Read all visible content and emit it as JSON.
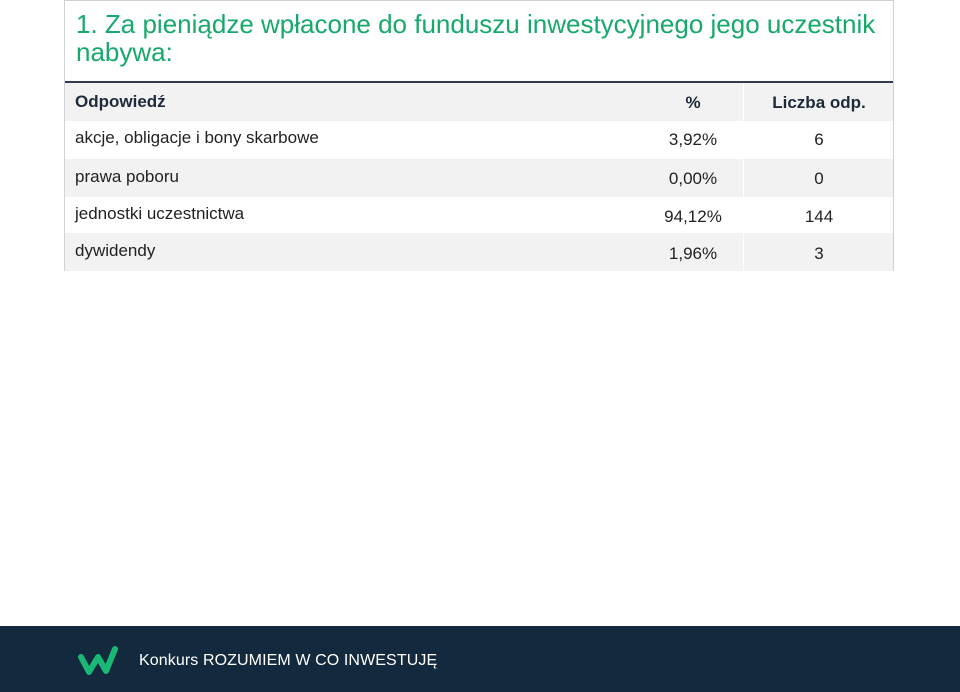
{
  "title": "1. Za pieniądze wpłacone do funduszu inwestycyjnego jego uczestnik nabywa:",
  "table": {
    "headers": [
      "Odpowiedź",
      "%",
      "Liczba odp."
    ],
    "rows": [
      {
        "answer": "akcje, obligacje i bony skarbowe",
        "percent": "3,92%",
        "count": "6"
      },
      {
        "answer": "prawa poboru",
        "percent": "0,00%",
        "count": "0"
      },
      {
        "answer": "jednostki uczestnictwa",
        "percent": "94,12%",
        "count": "144"
      },
      {
        "answer": "dywidendy",
        "percent": "1,96%",
        "count": "3"
      }
    ]
  },
  "footer": {
    "logo_icon": "w-logo-icon",
    "text": "Konkurs ROZUMIEM W CO INWESTUJĘ"
  },
  "colors": {
    "title": "#16a96b",
    "header_rule": "#2f3d4f",
    "stripe": "#f2f2f2",
    "footer_bg": "#13293d",
    "logo": "#19b877"
  }
}
